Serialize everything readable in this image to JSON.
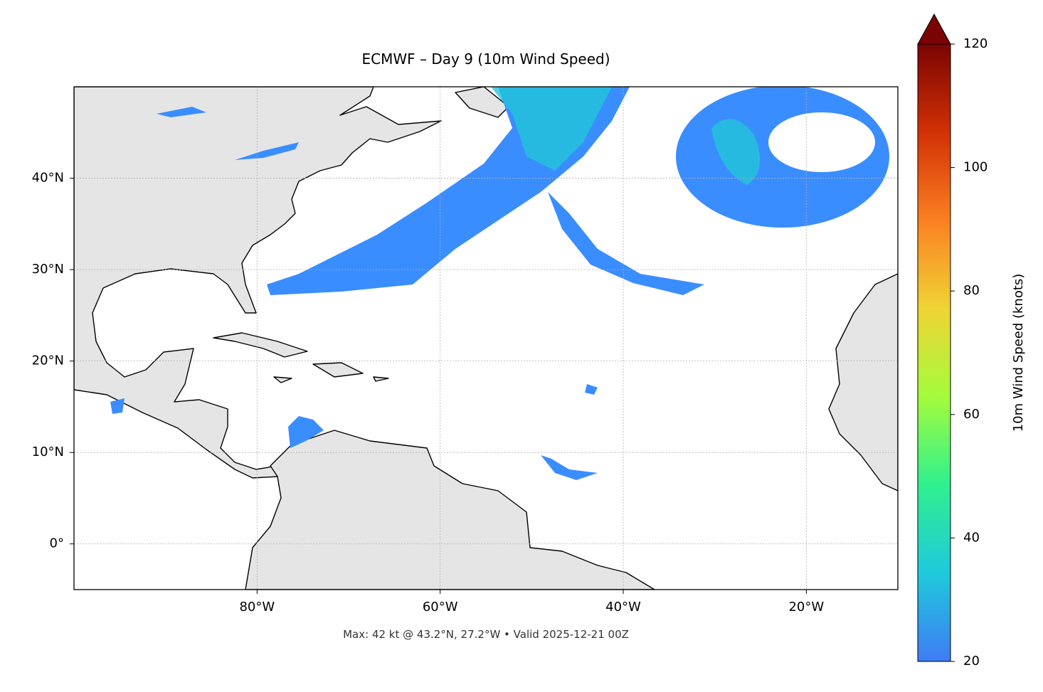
{
  "chart_data": {
    "type": "map",
    "title": "ECMWF – Day 9 (10m Wind Speed)",
    "footnote": "Max: 42 kt @ 43.2°N, 27.2°W • Valid 2025-12-21 00Z",
    "xlim": [
      -100,
      -10
    ],
    "ylim": [
      -5,
      50
    ],
    "xticks": [
      {
        "value": -80,
        "label": "80°W"
      },
      {
        "value": -60,
        "label": "60°W"
      },
      {
        "value": -40,
        "label": "40°W"
      },
      {
        "value": -20,
        "label": "20°W"
      }
    ],
    "yticks": [
      {
        "value": 0,
        "label": "0°"
      },
      {
        "value": 10,
        "label": "10°N"
      },
      {
        "value": 20,
        "label": "20°N"
      },
      {
        "value": 30,
        "label": "30°N"
      },
      {
        "value": 40,
        "label": "40°N"
      }
    ],
    "grid": true,
    "colorbar": {
      "label": "10m Wind Speed (knots)",
      "lim": [
        20,
        120
      ],
      "ticks": [
        20,
        40,
        60,
        80,
        100,
        120
      ],
      "colormap": [
        "#3f7cf5",
        "#1fc9dc",
        "#2ef08f",
        "#a4fc3c",
        "#f0d434",
        "#fb8022",
        "#d23105",
        "#7a0403"
      ],
      "extend_color": "#7a0403"
    },
    "land_color": "#e5e5e5"
  }
}
